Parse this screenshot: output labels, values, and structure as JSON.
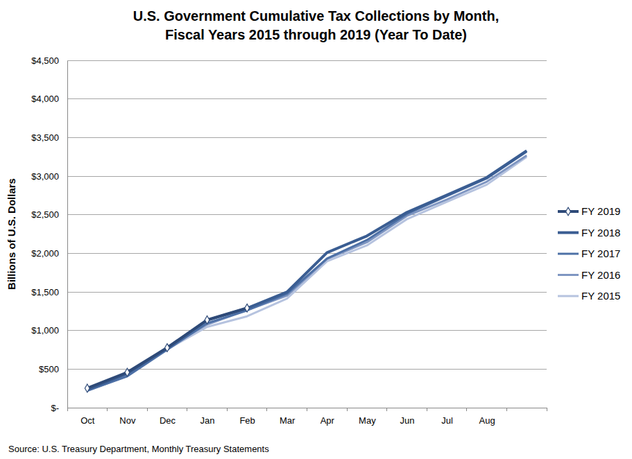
{
  "chart_data": {
    "type": "line",
    "title": "U.S. Government Cumulative Tax Collections by Month,\nFiscal Years 2015 through 2019 (Year To Date)",
    "y_label": "Billions of U.S. Dollars",
    "source": "Source: U.S. Treasury Department, Monthly Treasury Statements",
    "categories": [
      "Oct",
      "Nov",
      "Dec",
      "Jan",
      "Feb",
      "Mar",
      "Apr",
      "May",
      "Jun",
      "Jul",
      "Aug",
      null
    ],
    "series": [
      {
        "name": "FY 2019",
        "color": "#2e4a78",
        "marker": "diamond",
        "values": [
          252,
          458,
          777,
          1137,
          1291,
          null,
          null,
          null,
          null,
          null,
          null,
          null
        ]
      },
      {
        "name": "FY 2018",
        "color": "#3a5d92",
        "values": [
          235,
          443,
          772,
          1133,
          1288,
          1498,
          2008,
          2225,
          2530,
          2755,
          2982,
          3329
        ]
      },
      {
        "name": "FY 2017",
        "color": "#4d70a6",
        "values": [
          221,
          406,
          751,
          1095,
          1260,
          1476,
          1932,
          2172,
          2509,
          2741,
          2969,
          3316
        ]
      },
      {
        "name": "FY 2016",
        "color": "#7f96c2",
        "values": [
          220,
          412,
          775,
          1078,
          1264,
          1451,
          1926,
          2143,
          2484,
          2696,
          2928,
          3268
        ]
      },
      {
        "name": "FY 2015",
        "color": "#b6c3df",
        "values": [
          216,
          414,
          756,
          1046,
          1184,
          1413,
          1897,
          2102,
          2442,
          2667,
          2889,
          3249
        ]
      }
    ],
    "ylim": [
      0,
      4500
    ],
    "yticks": [
      {
        "value": 0,
        "label": "$-"
      },
      {
        "value": 500,
        "label": "$500"
      },
      {
        "value": 1000,
        "label": "$1,000"
      },
      {
        "value": 1500,
        "label": "$1,500"
      },
      {
        "value": 2000,
        "label": "$2,000"
      },
      {
        "value": 2500,
        "label": "$2,500"
      },
      {
        "value": 3000,
        "label": "$3,000"
      },
      {
        "value": 3500,
        "label": "$3,500"
      },
      {
        "value": 4000,
        "label": "$4,000"
      },
      {
        "value": 4500,
        "label": "$4,500"
      }
    ],
    "grid": true,
    "legend": "right"
  }
}
